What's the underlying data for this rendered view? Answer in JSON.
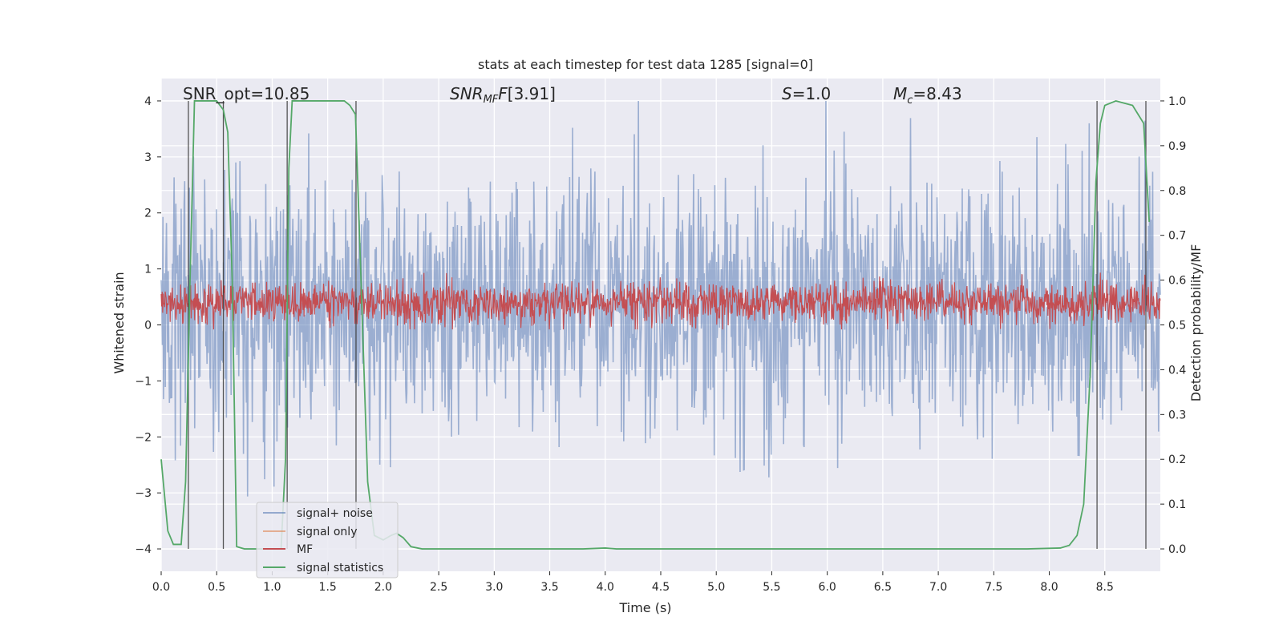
{
  "chart_data": {
    "type": "line",
    "title": "stats at each timestep for test data 1285 [signal=0]",
    "xlabel": "Time (s)",
    "ylabel_left": "Whitened strain",
    "ylabel_right": "Detection probability/MF",
    "xlim": [
      0.0,
      9.0
    ],
    "ylim_left": [
      -4.4,
      4.4
    ],
    "ylim_right": [
      -0.05,
      1.05
    ],
    "x_ticks": [
      0.0,
      0.5,
      1.0,
      1.5,
      2.0,
      2.5,
      3.0,
      3.5,
      4.0,
      4.5,
      5.0,
      5.5,
      6.0,
      6.5,
      7.0,
      7.5,
      8.0,
      8.5
    ],
    "x_tick_labels": [
      "0.0",
      "0.5",
      "1.0",
      "1.5",
      "2.0",
      "2.5",
      "3.0",
      "3.5",
      "4.0",
      "4.5",
      "5.0",
      "5.5",
      "6.0",
      "6.5",
      "7.0",
      "7.5",
      "8.0",
      "8.5"
    ],
    "y_left_ticks": [
      -4,
      -3,
      -2,
      -1,
      0,
      1,
      2,
      3,
      4
    ],
    "y_left_tick_labels": [
      "−4",
      "−3",
      "−2",
      "−1",
      "0",
      "1",
      "2",
      "3",
      "4"
    ],
    "y_right_ticks": [
      0.0,
      0.1,
      0.2,
      0.3,
      0.4,
      0.5,
      0.6,
      0.7,
      0.8,
      0.9,
      1.0
    ],
    "y_right_tick_labels": [
      "0.0",
      "0.1",
      "0.2",
      "0.3",
      "0.4",
      "0.5",
      "0.6",
      "0.7",
      "0.8",
      "0.9",
      "1.0"
    ],
    "annotations": {
      "snr_opt": "SNR_opt=10.85",
      "snr_mf": "[3.91]",
      "s_value": "=1.0",
      "mc_value": "=8.43"
    },
    "series": [
      {
        "name": "signal+ noise",
        "color": "#4c72b0",
        "alpha": 0.5,
        "description": "noise",
        "amplitude_range": [
          -4.0,
          4.0
        ]
      },
      {
        "name": "signal only",
        "color": "#dd8452",
        "values": []
      },
      {
        "name": "MF",
        "color": "#c44e52",
        "description": "noise on right axis",
        "range": [
          0.5,
          0.6
        ]
      },
      {
        "name": "signal statistics",
        "color": "#55a868",
        "x": [
          0.0,
          0.06,
          0.11,
          0.18,
          0.22,
          0.26,
          0.3,
          0.4,
          0.5,
          0.56,
          0.6,
          0.64,
          0.68,
          0.75,
          0.9,
          1.0,
          1.08,
          1.12,
          1.15,
          1.18,
          1.24,
          1.5,
          1.65,
          1.7,
          1.75,
          1.8,
          1.86,
          1.92,
          2.0,
          2.07,
          2.12,
          2.18,
          2.25,
          2.35,
          3.0,
          3.8,
          4.0,
          4.1,
          5.0,
          6.0,
          7.0,
          7.8,
          8.1,
          8.18,
          8.25,
          8.31,
          8.37,
          8.42,
          8.46,
          8.5,
          8.6,
          8.75,
          8.8,
          8.85,
          8.9
        ],
        "values": [
          0.2,
          0.04,
          0.01,
          0.01,
          0.15,
          0.6,
          1.0,
          1.0,
          1.0,
          0.98,
          0.93,
          0.6,
          0.005,
          0.0,
          0.0,
          0.0,
          0.0,
          0.2,
          0.85,
          1.0,
          1.0,
          1.0,
          1.0,
          0.99,
          0.97,
          0.6,
          0.15,
          0.03,
          0.02,
          0.03,
          0.035,
          0.025,
          0.005,
          0.0,
          0.0,
          0.0,
          0.002,
          0.0,
          0.0,
          0.0,
          0.0,
          0.0,
          0.002,
          0.008,
          0.03,
          0.1,
          0.4,
          0.82,
          0.95,
          0.99,
          1.0,
          0.99,
          0.97,
          0.95,
          0.73
        ]
      }
    ],
    "vertical_lines_x": [
      0.245,
      0.56,
      1.135,
      1.755,
      8.43,
      8.87
    ],
    "legend": {
      "position": "lower-left",
      "entries": [
        {
          "label": "signal+ noise",
          "color": "#4c72b0"
        },
        {
          "label": "signal only",
          "color": "#dd8452"
        },
        {
          "label": "MF",
          "color": "#c44e52"
        },
        {
          "label": "signal statistics",
          "color": "#55a868"
        }
      ]
    },
    "grid": true,
    "background": "#eaeaf2"
  }
}
